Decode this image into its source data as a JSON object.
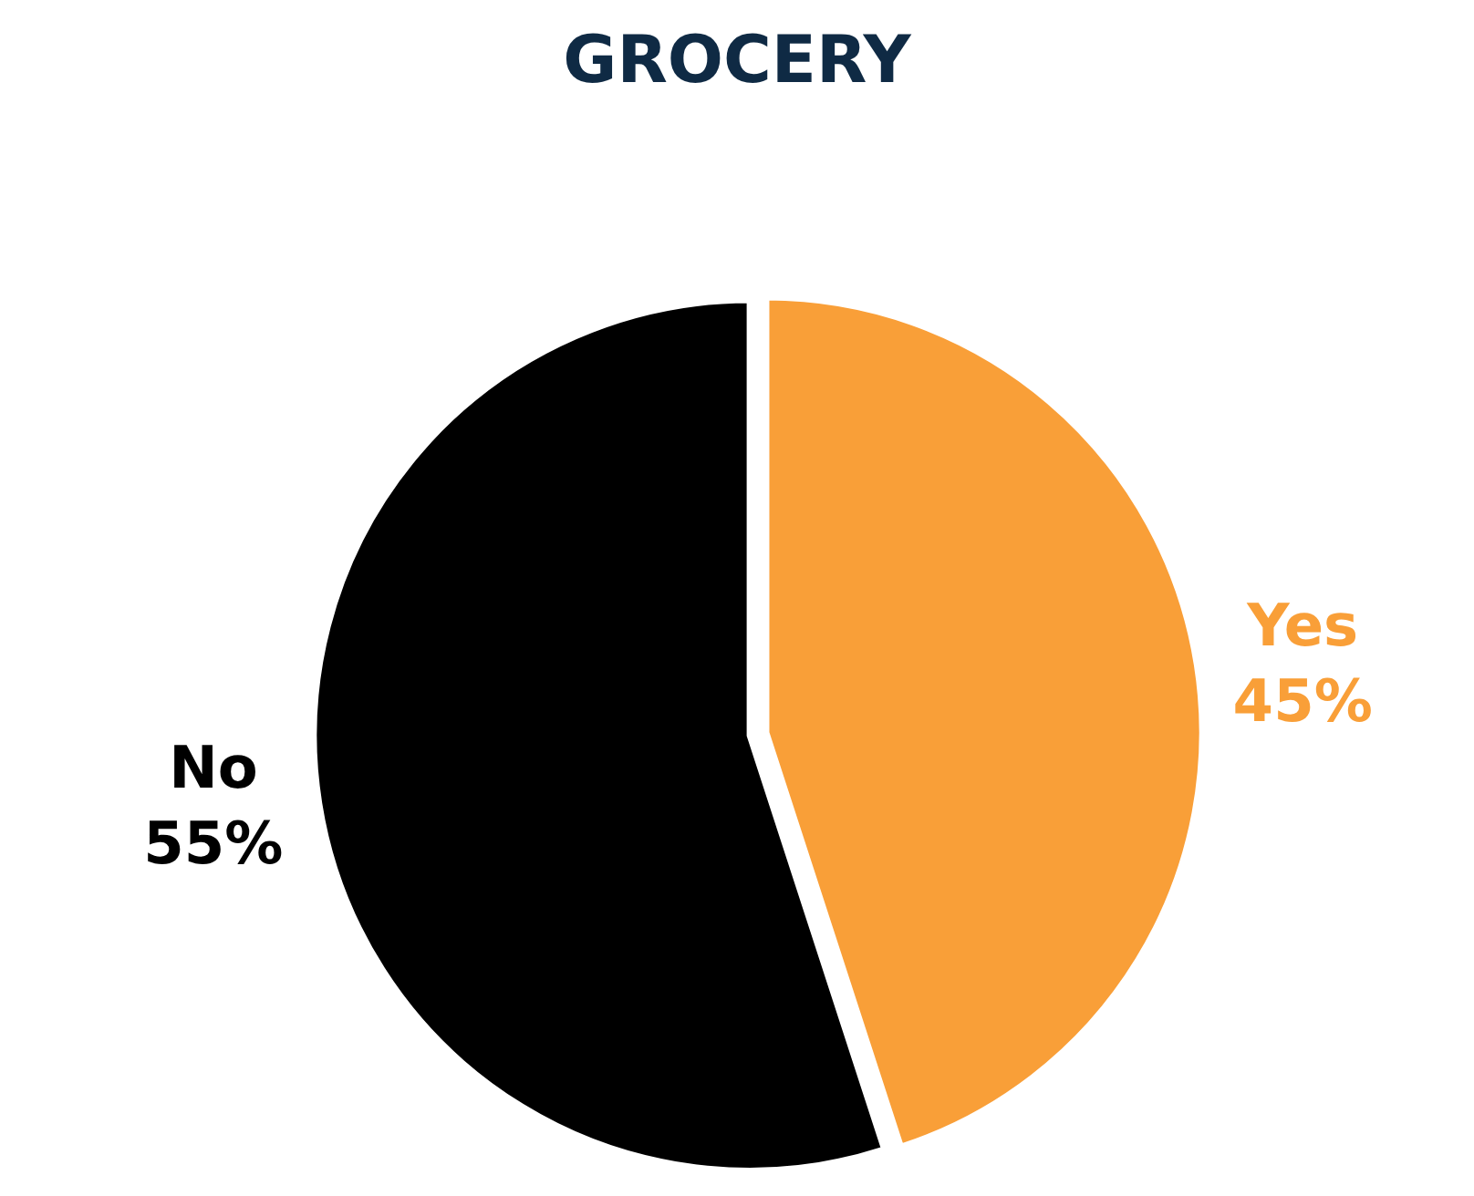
{
  "chart_data": {
    "type": "pie",
    "title": "GROCERY",
    "categories": [
      "Yes",
      "No"
    ],
    "values": [
      45,
      55
    ],
    "colors": [
      "#f99f38",
      "#000000"
    ],
    "value_labels": [
      "45%",
      "55%"
    ],
    "legend": false
  }
}
